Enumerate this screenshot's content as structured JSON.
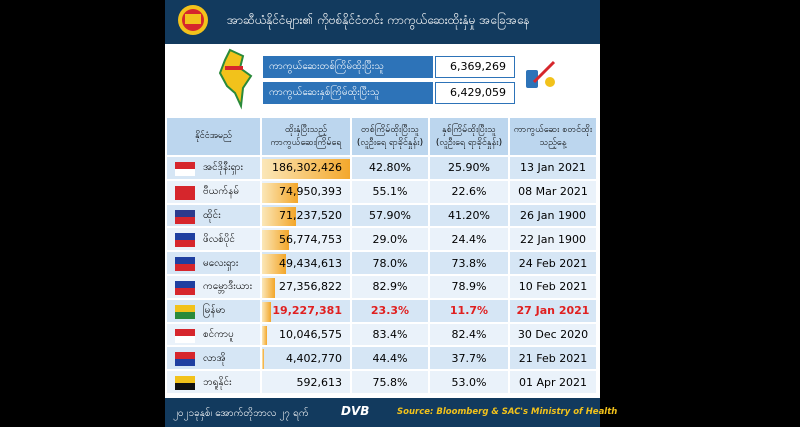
{
  "header": {
    "title": "အာဆီယံနိုင်ငံများ၏ ကိုဗစ်နိုင်ငံတင်း ကာကွယ်ဆေးထိုးနှံမှု အခြေအနေ"
  },
  "summary": [
    {
      "label": "ကာကွယ်ဆေးတစ်ကြိမ်ထိုးပြီးသူ",
      "value": "6,369,269"
    },
    {
      "label": "ကာကွယ်ဆေးနှစ်ကြိမ်ထိုးပြီးသူ",
      "value": "6,429,059"
    }
  ],
  "table": {
    "columns": [
      "နိုင်ငံအမည်",
      "ထိုးနှံပြီးသည့် ကာကွယ်ဆေးကြိမ်ရေ",
      "တစ်ကြိမ်ထိုးပြီးသူ (လူဦးရေ ရာခိုင်နှုန်း)",
      "နှစ်ကြိမ်ထိုးပြီးသူ (လူဦးရေ ရာခိုင်နှုန်း)",
      "ကာကွယ်ဆေး စတင်ထိုးသည့်နေ့"
    ],
    "rows": [
      {
        "country": "အင်ဒိုနီးရှား",
        "doses": {
          "value": 186302426,
          "label": "186,302,426"
        },
        "first": "42.80%",
        "full": "25.90%",
        "start": "13 Jan 2021"
      },
      {
        "country": "ဗီယက်နမ်",
        "doses": {
          "value": 74950393,
          "label": "74,950,393"
        },
        "first": "55.1%",
        "full": "22.6%",
        "start": "08 Mar 2021"
      },
      {
        "country": "ထိုင်း",
        "doses": {
          "value": 71237520,
          "label": "71,237,520"
        },
        "first": "57.90%",
        "full": "41.20%",
        "start": "26 Jan 1900"
      },
      {
        "country": "ဖိလစ်ပိုင်",
        "doses": {
          "value": 56774753,
          "label": "56,774,753"
        },
        "first": "29.0%",
        "full": "24.4%",
        "start": "22 Jan 1900"
      },
      {
        "country": "မလေးရှား",
        "doses": {
          "value": 49434613,
          "label": "49,434,613"
        },
        "first": "78.0%",
        "full": "73.8%",
        "start": "24 Feb 2021"
      },
      {
        "country": "ကမ္ဘောဒီးယား",
        "doses": {
          "value": 27356822,
          "label": "27,356,822"
        },
        "first": "82.9%",
        "full": "78.9%",
        "start": "10 Feb 2021"
      },
      {
        "country": "မြန်မာ",
        "doses": {
          "value": 19227381,
          "label": "19,227,381"
        },
        "first": "23.3%",
        "full": "11.7%",
        "start": "27 Jan 2021",
        "highlight": true
      },
      {
        "country": "စင်ကာပူ",
        "doses": {
          "value": 10046575,
          "label": "10,046,575"
        },
        "first": "83.4%",
        "full": "82.4%",
        "start": "30 Dec 2020"
      },
      {
        "country": "လာအို",
        "doses": {
          "value": 4402770,
          "label": "4,402,770"
        },
        "first": "44.4%",
        "full": "37.7%",
        "start": "21 Feb 2021"
      },
      {
        "country": "ဘရူနိုင်း",
        "doses": {
          "value": 592613,
          "label": "592,613"
        },
        "first": "75.8%",
        "full": "53.0%",
        "start": "01 Apr 2021"
      }
    ]
  },
  "footer": {
    "date": "၂၀၂၁ခုနှစ်၊ အောက်တိုဘာလ ၂၇ ရက်",
    "logo": "DVB",
    "source": "Source: Bloomberg & SAC's Ministry of Health"
  }
}
